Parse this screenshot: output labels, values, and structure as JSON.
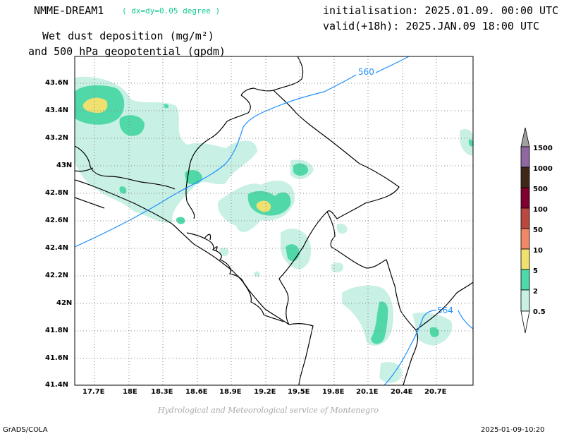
{
  "header": {
    "model": "NMME-DREAM1",
    "resolution": "( dx=dy=0.05 degree )",
    "product_line1": "Wet dust deposition (mg/m²)",
    "product_line2": "and 500 hPa geopotential (gpdm)",
    "init": "initialisation: 2025.01.09. 00:00 UTC",
    "valid": "valid(+18h): 2025.JAN.09 18:00 UTC"
  },
  "map": {
    "lon_ticks": [
      "17.7E",
      "18E",
      "18.3E",
      "18.6E",
      "18.9E",
      "19.2E",
      "19.5E",
      "19.8E",
      "20.1E",
      "20.4E",
      "20.7E"
    ],
    "lat_ticks": [
      "43.6N",
      "43.4N",
      "43.2N",
      "43N",
      "42.8N",
      "42.6N",
      "42.4N",
      "42.2N",
      "42N",
      "41.8N",
      "41.6N",
      "41.4N"
    ],
    "contour_labels": [
      "560",
      "564"
    ]
  },
  "legend": {
    "levels": [
      "0.5",
      "2",
      "5",
      "10",
      "50",
      "100",
      "500",
      "1000",
      "1500"
    ],
    "colors": [
      "#c8f0e4",
      "#50d8a8",
      "#f0e070",
      "#f08868",
      "#b84840",
      "#800030",
      "#402818",
      "#9068a0",
      "#a0a0a0"
    ]
  },
  "footer": {
    "credit": "Hydrological and Meteorological service of Montenegro",
    "software": "GrADS/COLA",
    "timestamp": "2025-01-09-10:20"
  }
}
